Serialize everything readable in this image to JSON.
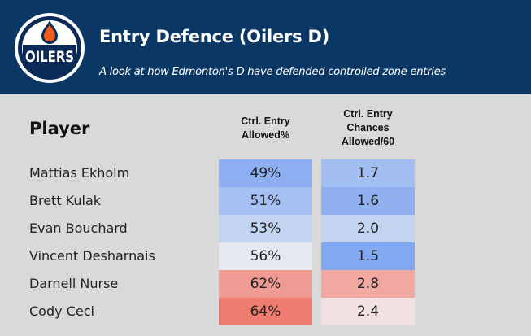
{
  "header": {
    "title": "Entry Defence (Oilers D)",
    "subtitle": "A look at how Edmonton's D have defended controlled zone entries",
    "logo_text": "OILERS",
    "colors": {
      "background": "#0b3765",
      "logo_orange": "#f25c1a",
      "logo_navy": "#0b2a58"
    }
  },
  "chart_data": {
    "type": "table",
    "title": "Entry Defence (Oilers D)",
    "subtitle": "A look at how Edmonton's D have defended controlled zone entries",
    "columns": [
      "Player",
      "Ctrl. Entry Allowed%",
      "Ctrl. Entry Chances Allowed/60"
    ],
    "column_labels": {
      "player": "Player",
      "c1": [
        "Ctrl. Entry",
        "Allowed%"
      ],
      "c2": [
        "Ctrl. Entry",
        "Chances",
        "Allowed/60"
      ]
    },
    "rows": [
      {
        "player": "Mattias Ekholm",
        "allowed_pct": "49%",
        "allowed_pct_value": 49,
        "chances_60": "1.7",
        "chances_60_value": 1.7
      },
      {
        "player": "Brett Kulak",
        "allowed_pct": "51%",
        "allowed_pct_value": 51,
        "chances_60": "1.6",
        "chances_60_value": 1.6
      },
      {
        "player": "Evan Bouchard",
        "allowed_pct": "53%",
        "allowed_pct_value": 53,
        "chances_60": "2.0",
        "chances_60_value": 2.0
      },
      {
        "player": "Vincent Desharnais",
        "allowed_pct": "56%",
        "allowed_pct_value": 56,
        "chances_60": "1.5",
        "chances_60_value": 1.5
      },
      {
        "player": "Darnell Nurse",
        "allowed_pct": "62%",
        "allowed_pct_value": 62,
        "chances_60": "2.8",
        "chances_60_value": 2.8
      },
      {
        "player": "Cody Ceci",
        "allowed_pct": "64%",
        "allowed_pct_value": 64,
        "chances_60": "2.4",
        "chances_60_value": 2.4
      }
    ],
    "cell_colors": {
      "allowed_pct": [
        "#8daef0",
        "#a5c0f2",
        "#c3d4f1",
        "#e3e8f1",
        "#ef9a92",
        "#ee7c70"
      ],
      "chances_60": [
        "#a3bff2",
        "#90b0f0",
        "#c3d4f1",
        "#82a8f1",
        "#f0a8a0",
        "#f1e1e1"
      ]
    }
  }
}
